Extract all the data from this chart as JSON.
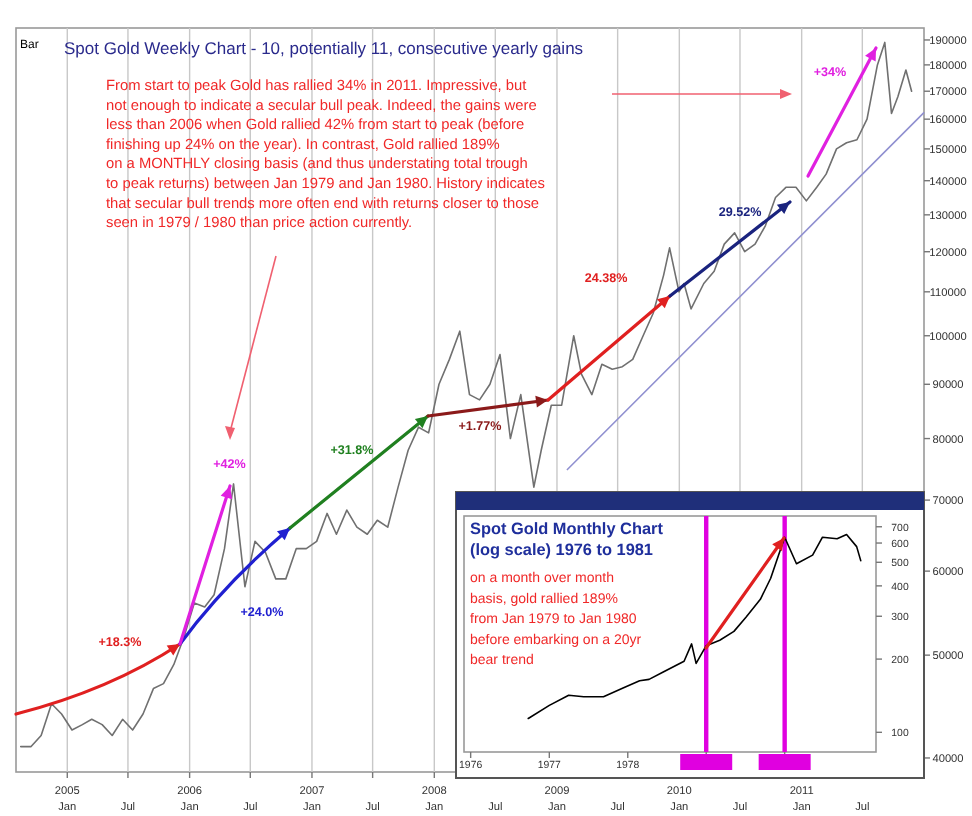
{
  "chart_data": [
    {
      "type": "line",
      "title": "Spot Gold Weekly Chart - 10, potentially 11, consecutive yearly gains",
      "annotations": [
        "Bar",
        "From start to peak Gold has rallied 34% in 2011. Impressive, but\nnot enough to indicate a secular bull peak. Indeed, the gains were\nless than 2006 when Gold rallied 42% from start to peak (before\nfinishing up 24% on the year). In contrast, Gold rallied 189%\non a MONTHLY closing basis (and thus understating total trough\nto peak returns) between Jan 1979 and Jan 1980. History indicates\nthat secular bull trends more often end with returns closer to those\nseen in 1979 / 1980 than price action currently.",
        "+18.3%",
        "+24.0%",
        {
          "text": "+42%",
          "x": "2006-05-12",
          "y": 72500
        },
        "+31.8%",
        "+1.77%",
        "24.38%",
        "29.52%",
        "+34%"
      ],
      "log": true,
      "grid": "x",
      "xlim": [
        "2004-08-01",
        "2012-01-01"
      ],
      "ylim": [
        38800,
        195000
      ],
      "xticks": [
        {
          "value": "2005-01-01",
          "label": "2005\nJan"
        },
        {
          "value": "2005-07-01",
          "label": "Jul"
        },
        {
          "value": "2006-01-01",
          "label": "2006\nJan"
        },
        {
          "value": "2006-07-01",
          "label": "Jul"
        },
        {
          "value": "2007-01-01",
          "label": "2007\nJan"
        },
        {
          "value": "2007-07-01",
          "label": "Jul"
        },
        {
          "value": "2008-01-01",
          "label": "2008\nJan"
        },
        {
          "value": "2008-07-01",
          "label": "Jul"
        },
        {
          "value": "2009-01-01",
          "label": "2009\nJan"
        },
        {
          "value": "2009-07-01",
          "label": "Jul"
        },
        {
          "value": "2010-01-01",
          "label": "2010\nJan"
        },
        {
          "value": "2010-07-01",
          "label": "Jul"
        },
        {
          "value": "2011-01-01",
          "label": "2011\nJan"
        },
        {
          "value": "2011-07-01",
          "label": "Jul"
        }
      ],
      "yticks": [
        40000,
        50000,
        60000,
        70000,
        80000,
        90000,
        100000,
        110000,
        120000,
        130000,
        140000,
        150000,
        160000,
        170000,
        180000,
        190000
      ],
      "series": [
        {
          "color": "#707070",
          "x": [
            "2004-08-15",
            "2004-09-15",
            "2004-10-15",
            "2004-11-15",
            "2004-12-15",
            "2005-01-15",
            "2005-02-15",
            "2005-03-15",
            "2005-04-15",
            "2005-05-15",
            "2005-06-15",
            "2005-07-15",
            "2005-08-15",
            "2005-09-15",
            "2005-10-15",
            "2005-11-15",
            "2005-12-15",
            "2006-01-15",
            "2006-02-15",
            "2006-03-15",
            "2006-04-15",
            "2006-05-12",
            "2006-06-15",
            "2006-07-15",
            "2006-08-15",
            "2006-09-15",
            "2006-10-15",
            "2006-11-15",
            "2006-12-15",
            "2007-01-15",
            "2007-02-15",
            "2007-03-15",
            "2007-04-15",
            "2007-05-15",
            "2007-06-15",
            "2007-07-15",
            "2007-08-15",
            "2007-09-15",
            "2007-10-15",
            "2007-11-15",
            "2007-12-15",
            "2008-01-15",
            "2008-02-15",
            "2008-03-17",
            "2008-04-15",
            "2008-05-15",
            "2008-06-15",
            "2008-07-15",
            "2008-08-15",
            "2008-09-15",
            "2008-10-24",
            "2008-11-15",
            "2008-12-15",
            "2009-01-15",
            "2009-02-20",
            "2009-03-15",
            "2009-04-15",
            "2009-05-15",
            "2009-06-15",
            "2009-07-15",
            "2009-08-15",
            "2009-09-15",
            "2009-10-15",
            "2009-11-15",
            "2009-12-03",
            "2009-12-31",
            "2010-01-15",
            "2010-02-05",
            "2010-03-15",
            "2010-04-15",
            "2010-05-15",
            "2010-06-15",
            "2010-07-15",
            "2010-08-15",
            "2010-09-15",
            "2010-10-15",
            "2010-11-15",
            "2010-12-15",
            "2011-01-15",
            "2011-02-15",
            "2011-03-15",
            "2011-04-15",
            "2011-05-15",
            "2011-06-15",
            "2011-07-15",
            "2011-08-15",
            "2011-09-06",
            "2011-09-26",
            "2011-10-15",
            "2011-11-08",
            "2011-11-25"
          ],
          "values": [
            41000,
            41000,
            42000,
            45000,
            44000,
            42500,
            43000,
            43500,
            43000,
            42000,
            43500,
            42500,
            44000,
            46500,
            47000,
            49000,
            52000,
            56000,
            55500,
            57000,
            63000,
            72500,
            58000,
            64000,
            62500,
            59000,
            59000,
            63000,
            63000,
            64000,
            68000,
            65000,
            68500,
            66000,
            65000,
            67000,
            66000,
            72000,
            78000,
            82000,
            81000,
            90000,
            95000,
            101000,
            88000,
            87000,
            90000,
            96000,
            80000,
            88000,
            72000,
            78000,
            86000,
            86000,
            100000,
            92000,
            88000,
            94000,
            93000,
            93500,
            95000,
            100000,
            105000,
            114000,
            121000,
            110000,
            112000,
            106000,
            112000,
            115000,
            122000,
            125000,
            120000,
            122000,
            127000,
            135000,
            138000,
            138000,
            134000,
            138000,
            142000,
            150000,
            152000,
            153000,
            160000,
            180000,
            189000,
            162000,
            168000,
            178000,
            170000
          ]
        },
        {
          "color": "#9090d0",
          "x": [
            "2009-02-01",
            "2011-12-31"
          ],
          "values": [
            74800,
            162200
          ]
        }
      ]
    },
    {
      "type": "line",
      "title": "Spot Gold Monthly Chart\n(log scale) 1976 to 1981",
      "annotations": [
        "on a month over month\nbasis, gold rallied 189%\nfrom Jan 1979 to Jan 1980\nbefore embarking on a 20yr\nbear trend"
      ],
      "log": true,
      "xlim": [
        "1975-12-01",
        "1981-03-01"
      ],
      "ylim": [
        83,
        775
      ],
      "xticks": [
        {
          "value": "1976-01-01",
          "label": "1976"
        },
        {
          "value": "1977-01-01",
          "label": "1977"
        },
        {
          "value": "1978-01-01",
          "label": "1978"
        },
        {
          "value": "1979-01-01",
          "label": null
        },
        {
          "value": "1980-01-01",
          "label": null
        }
      ],
      "yticks": [
        100,
        200,
        300,
        400,
        500,
        600,
        700
      ],
      "ref_lines": [
        {
          "axis": "x",
          "value": "1979-01-01",
          "label": null,
          "color": "#e000e0"
        },
        {
          "axis": "x",
          "value": "1980-01-01",
          "label": null,
          "color": "#e000e0"
        }
      ],
      "series": [
        {
          "color": "#000000",
          "x": [
            "1976-09-25",
            "1977-01-01",
            "1977-04-01",
            "1977-06-10",
            "1977-09-10",
            "1977-12-10",
            "1978-02-25",
            "1978-04-10",
            "1978-06-15",
            "1978-09-20",
            "1978-10-25",
            "1978-11-15",
            "1979-01-01",
            "1979-03-05",
            "1979-05-10",
            "1979-07-05",
            "1979-09-10",
            "1979-10-28",
            "1980-01-01",
            "1980-02-25",
            "1980-05-10",
            "1980-06-25",
            "1980-09-01",
            "1980-10-15",
            "1980-12-01",
            "1980-12-20"
          ],
          "values": [
            114,
            129,
            142,
            140,
            140,
            152,
            163,
            165,
            177,
            196,
            231,
            192,
            227,
            239,
            260,
            297,
            352,
            430,
            634,
            493,
            535,
            634,
            625,
            650,
            580,
            508
          ]
        }
      ]
    }
  ]
}
